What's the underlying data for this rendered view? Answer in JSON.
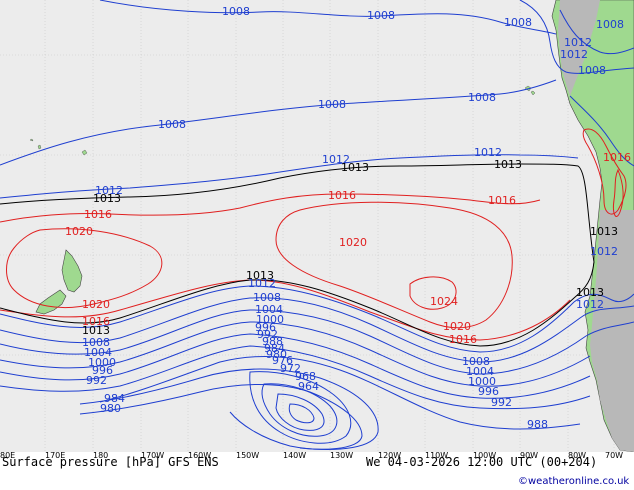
{
  "footer": {
    "title": "Surface pressure [hPa] GFS ENS",
    "datetime": "We 04-03-2026 12:00 UTC (00+204)",
    "credit": "©weatheronline.co.uk"
  },
  "longitudes": [
    "80E",
    "170E",
    "180",
    "170W",
    "160W",
    "150W",
    "140W",
    "130W",
    "120W",
    "110W",
    "100W",
    "90W",
    "80W",
    "70W"
  ],
  "isobar_labels": {
    "l1008_top1": "1008",
    "l1008_top2": "1008",
    "l1008_top3": "1008",
    "l1008_top4": "1008",
    "l1012_ne1": "1012",
    "l1012_ne2": "1012",
    "l1008_ne": "1008",
    "l1008_mid1": "1008",
    "l1008_mid2": "1008",
    "l1008_west": "1008",
    "l1012_west": "1012",
    "l1012_east": "1012",
    "l1013_cen": "1013",
    "l1013_east": "1013",
    "l1013_west": "1013",
    "l1017_west": "1012",
    "l1016_nw": "1016",
    "l1016_cen": "1016",
    "l1016_east": "1016",
    "l1016_chile": "1016",
    "l1020_w": "1020",
    "l1020_c": "1020",
    "l1020_sw": "1020",
    "l1024": "1024",
    "l1020_se": "1020",
    "l1016_se": "1016",
    "l1016_sw": "1016",
    "l1013_mid": "1013",
    "l1012_mid": "1012",
    "l1013_coast": "1013",
    "l1012_coast": "1012",
    "l1013_se": "1013",
    "l1012_se": "1012",
    "l1013_sw": "1013",
    "l1008_s": "1008",
    "l1004_s": "1004",
    "l1000_s": "1000",
    "l996_s": "996",
    "l992_s": "992",
    "l988_s": "988",
    "l984_s": "984",
    "l980_s": "980",
    "l976_s": "976",
    "l972_s": "972",
    "l968_s": "968",
    "l964_s": "964",
    "l1008_sw": "1008",
    "l1004_sw": "1004",
    "l1000_sw": "1000",
    "l996_sw": "996",
    "l992_sw": "992",
    "l984_sw": "984",
    "l980_sw": "980",
    "l1008_se": "1008",
    "l1004_se": "1004",
    "l1000_se": "1000",
    "l996_se": "996",
    "l992_se": "992",
    "l988_se": "988"
  },
  "colors": {
    "ocean": "#ececec",
    "land": "#9fd98f",
    "land_grey": "#b8b8b8",
    "isobar_low": "#1f3fd0",
    "isobar_high": "#e02020",
    "isobar_ref": "#000000"
  }
}
